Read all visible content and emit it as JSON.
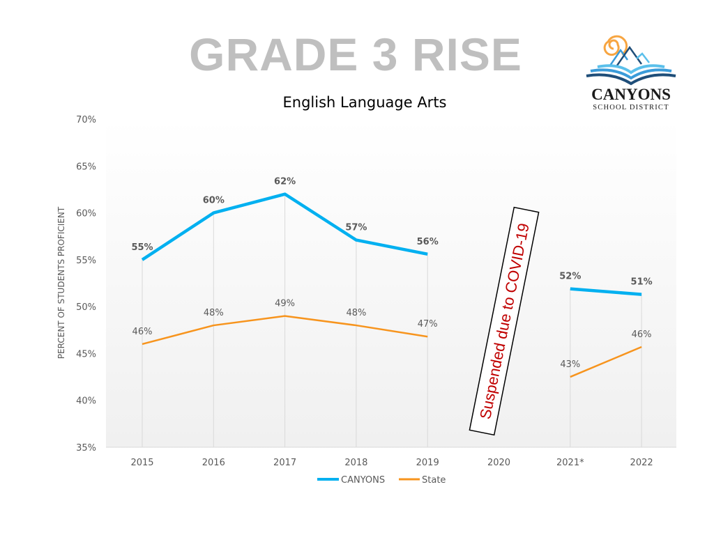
{
  "chart_data": {
    "type": "line",
    "title": "GRADE 3 RISE",
    "subtitle": "English Language Arts",
    "ylabel": "PERCENT OF STUDENTS PROFICIENT",
    "xlabel": "",
    "ylim": [
      35,
      70
    ],
    "yticks": [
      "35%",
      "40%",
      "45%",
      "50%",
      "55%",
      "60%",
      "65%",
      "70%"
    ],
    "ytick_values": [
      35,
      40,
      45,
      50,
      55,
      60,
      65,
      70
    ],
    "categories": [
      "2015",
      "2016",
      "2017",
      "2018",
      "2019",
      "2020",
      "2021*",
      "2022"
    ],
    "grid": "vertical drop lines",
    "legend": "bottom",
    "series": [
      {
        "name": "CANYONS",
        "color": "#00b0f0",
        "values": [
          55,
          60,
          62,
          57.1,
          55.6,
          null,
          51.9,
          51.3
        ],
        "labels": [
          "55%",
          "60%",
          "62%",
          "57%",
          "56%",
          null,
          "52%",
          "51%"
        ]
      },
      {
        "name": "State",
        "color": "#f7941d",
        "values": [
          46,
          48,
          49,
          48,
          46.8,
          null,
          42.5,
          45.7
        ],
        "labels": [
          "46%",
          "48%",
          "49%",
          "48%",
          "47%",
          null,
          "43%",
          "46%"
        ]
      }
    ],
    "annotation": "Suspended due to COVID-19",
    "annotation_color": "#c00000"
  },
  "logo": {
    "name": "CANYONS",
    "sub": "SCHOOL DISTRICT"
  }
}
